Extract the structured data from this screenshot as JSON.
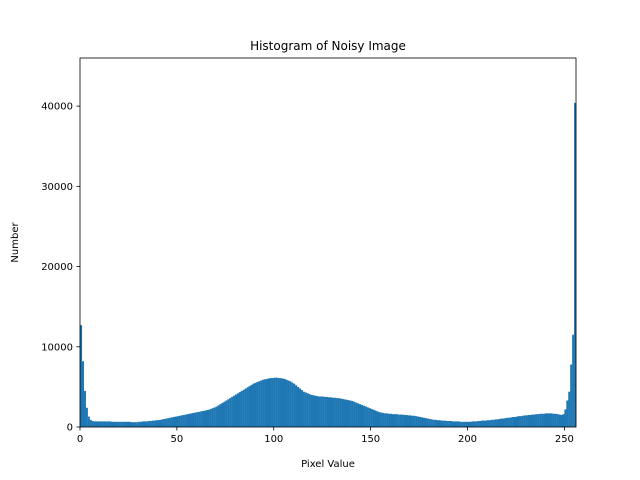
{
  "chart_data": {
    "type": "bar",
    "title": "Histogram of Noisy Image",
    "xlabel": "Pixel Value",
    "ylabel": "Number",
    "xlim": [
      0,
      256
    ],
    "ylim": [
      0,
      46000
    ],
    "xticks": [
      0,
      50,
      100,
      150,
      200,
      250
    ],
    "yticks": [
      0,
      10000,
      20000,
      30000,
      40000
    ],
    "grid": false,
    "color": "#1f77b4",
    "bin_width": 1,
    "x": [
      0,
      1,
      2,
      3,
      4,
      5,
      6,
      7,
      8,
      9,
      10,
      11,
      12,
      13,
      14,
      15,
      16,
      17,
      18,
      19,
      20,
      21,
      22,
      23,
      24,
      25,
      26,
      27,
      28,
      29,
      30,
      31,
      32,
      33,
      34,
      35,
      36,
      37,
      38,
      39,
      40,
      41,
      42,
      43,
      44,
      45,
      46,
      47,
      48,
      49,
      50,
      51,
      52,
      53,
      54,
      55,
      56,
      57,
      58,
      59,
      60,
      61,
      62,
      63,
      64,
      65,
      66,
      67,
      68,
      69,
      70,
      71,
      72,
      73,
      74,
      75,
      76,
      77,
      78,
      79,
      80,
      81,
      82,
      83,
      84,
      85,
      86,
      87,
      88,
      89,
      90,
      91,
      92,
      93,
      94,
      95,
      96,
      97,
      98,
      99,
      100,
      101,
      102,
      103,
      104,
      105,
      106,
      107,
      108,
      109,
      110,
      111,
      112,
      113,
      114,
      115,
      116,
      117,
      118,
      119,
      120,
      121,
      122,
      123,
      124,
      125,
      126,
      127,
      128,
      129,
      130,
      131,
      132,
      133,
      134,
      135,
      136,
      137,
      138,
      139,
      140,
      141,
      142,
      143,
      144,
      145,
      146,
      147,
      148,
      149,
      150,
      151,
      152,
      153,
      154,
      155,
      156,
      157,
      158,
      159,
      160,
      161,
      162,
      163,
      164,
      165,
      166,
      167,
      168,
      169,
      170,
      171,
      172,
      173,
      174,
      175,
      176,
      177,
      178,
      179,
      180,
      181,
      182,
      183,
      184,
      185,
      186,
      187,
      188,
      189,
      190,
      191,
      192,
      193,
      194,
      195,
      196,
      197,
      198,
      199,
      200,
      201,
      202,
      203,
      204,
      205,
      206,
      207,
      208,
      209,
      210,
      211,
      212,
      213,
      214,
      215,
      216,
      217,
      218,
      219,
      220,
      221,
      222,
      223,
      224,
      225,
      226,
      227,
      228,
      229,
      230,
      231,
      232,
      233,
      234,
      235,
      236,
      237,
      238,
      239,
      240,
      241,
      242,
      243,
      244,
      245,
      246,
      247,
      248,
      249,
      250,
      251,
      252,
      253,
      254,
      255
    ],
    "values": [
      12700,
      8200,
      4500,
      2400,
      1300,
      900,
      750,
      700,
      700,
      700,
      700,
      700,
      700,
      700,
      700,
      700,
      650,
      650,
      650,
      650,
      650,
      650,
      650,
      650,
      650,
      650,
      600,
      600,
      600,
      600,
      650,
      650,
      700,
      700,
      700,
      750,
      750,
      800,
      800,
      850,
      850,
      900,
      950,
      1000,
      1050,
      1100,
      1150,
      1200,
      1250,
      1300,
      1350,
      1400,
      1450,
      1500,
      1550,
      1600,
      1650,
      1700,
      1750,
      1800,
      1850,
      1900,
      1950,
      2000,
      2050,
      2100,
      2150,
      2250,
      2350,
      2450,
      2550,
      2700,
      2850,
      3000,
      3150,
      3300,
      3450,
      3600,
      3750,
      3900,
      4050,
      4200,
      4350,
      4500,
      4650,
      4800,
      4950,
      5100,
      5250,
      5400,
      5500,
      5600,
      5700,
      5800,
      5900,
      5950,
      6000,
      6050,
      6100,
      6100,
      6150,
      6150,
      6100,
      6100,
      6050,
      6000,
      5900,
      5800,
      5700,
      5550,
      5400,
      5200,
      5000,
      4800,
      4600,
      4400,
      4300,
      4200,
      4100,
      4000,
      3950,
      3900,
      3850,
      3800,
      3800,
      3800,
      3750,
      3750,
      3700,
      3700,
      3650,
      3650,
      3600,
      3600,
      3550,
      3500,
      3450,
      3400,
      3350,
      3300,
      3250,
      3150,
      3050,
      2950,
      2850,
      2750,
      2650,
      2550,
      2450,
      2350,
      2250,
      2150,
      2050,
      1950,
      1850,
      1800,
      1750,
      1700,
      1700,
      1650,
      1650,
      1600,
      1600,
      1600,
      1550,
      1550,
      1550,
      1500,
      1500,
      1450,
      1450,
      1400,
      1400,
      1350,
      1300,
      1250,
      1200,
      1150,
      1100,
      1050,
      1000,
      950,
      900,
      900,
      850,
      850,
      800,
      800,
      800,
      750,
      750,
      750,
      700,
      700,
      700,
      700,
      650,
      650,
      650,
      650,
      650,
      650,
      700,
      700,
      700,
      750,
      750,
      800,
      800,
      800,
      850,
      850,
      900,
      900,
      950,
      950,
      1000,
      1050,
      1050,
      1100,
      1150,
      1150,
      1200,
      1250,
      1250,
      1300,
      1350,
      1350,
      1400,
      1450,
      1450,
      1500,
      1500,
      1550,
      1550,
      1600,
      1600,
      1650,
      1650,
      1650,
      1700,
      1700,
      1700,
      1700,
      1650,
      1650,
      1600,
      1550,
      1500,
      1600,
      2200,
      3300,
      4400,
      7800,
      11500,
      40400
    ]
  }
}
